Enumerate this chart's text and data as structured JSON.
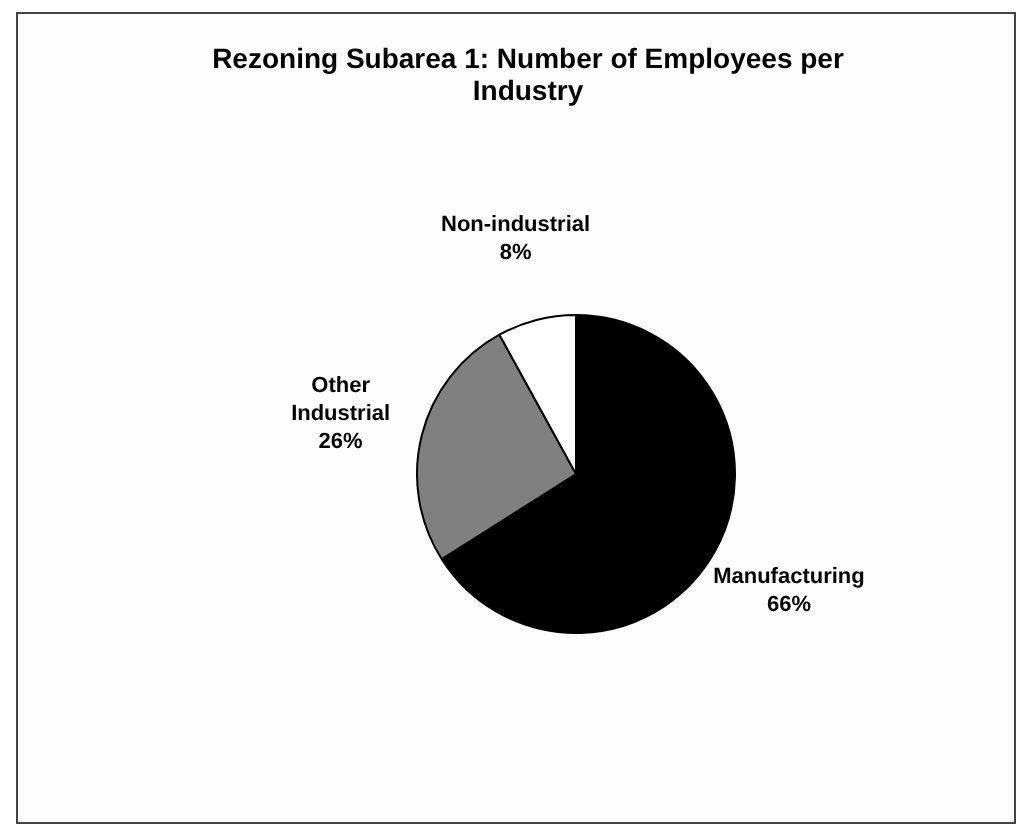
{
  "chart_data": {
    "type": "pie",
    "title": "Rezoning Subarea 1: Number of Employees per Industry",
    "categories": [
      "Manufacturing",
      "Other Industrial",
      "Non-industrial"
    ],
    "values": [
      66,
      26,
      8
    ],
    "colors": [
      "#000000",
      "#808080",
      "#ffffff"
    ],
    "value_labels": [
      "66%",
      "26%",
      "8%"
    ]
  }
}
